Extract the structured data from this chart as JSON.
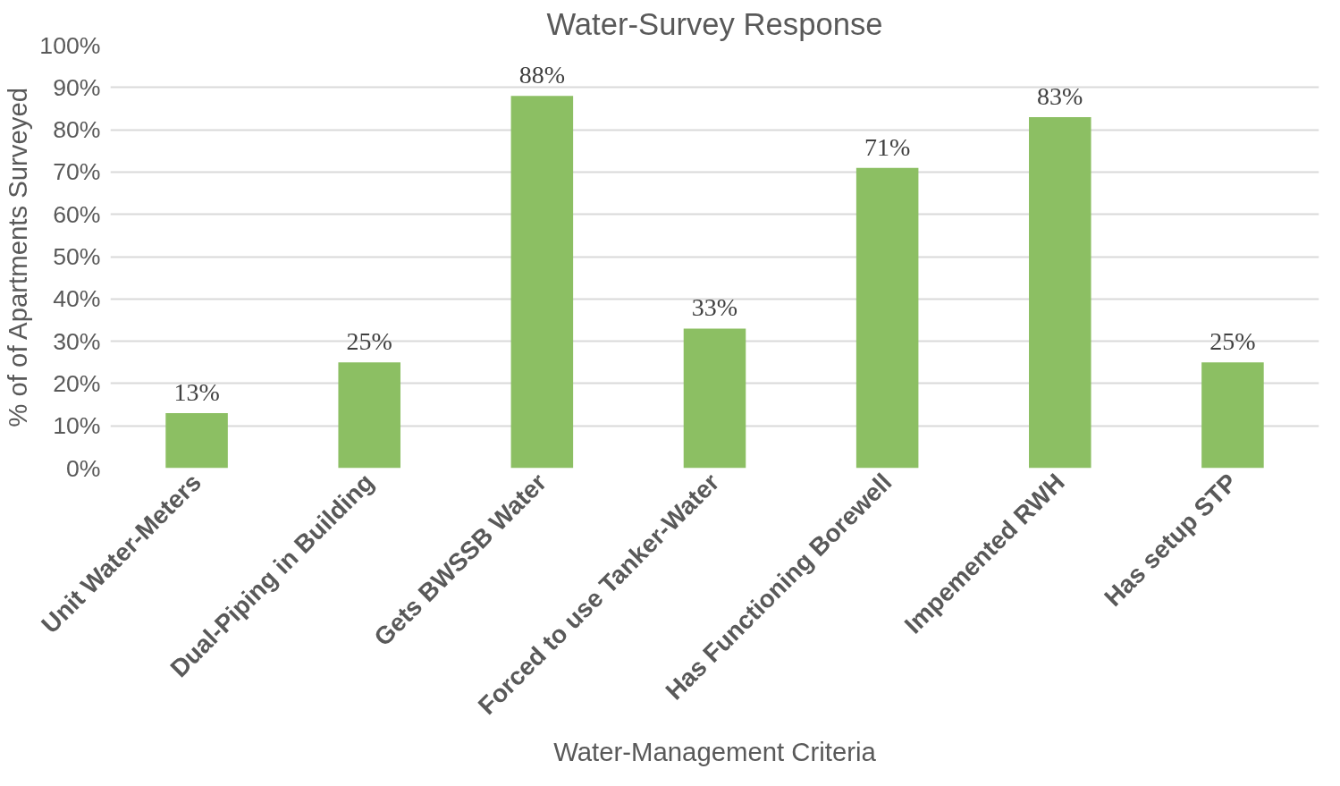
{
  "chart_data": {
    "type": "bar",
    "title": "Water-Survey Response",
    "xlabel": "Water-Management Criteria",
    "ylabel": "% of of Apartments Surveyed",
    "categories": [
      "Unit Water-Meters",
      "Dual-Piping in Building",
      "Gets BWSSB Water",
      "Forced to use Tanker-Water",
      "Has Functioning Borewell",
      "Impemented RWH",
      "Has setup STP"
    ],
    "values": [
      13,
      25,
      88,
      33,
      71,
      83,
      25
    ],
    "value_labels": [
      "13%",
      "25%",
      "88%",
      "33%",
      "71%",
      "83%",
      "25%"
    ],
    "color": "#8cbf63",
    "ylim": [
      0,
      100
    ],
    "yticks": [
      {
        "value": 0,
        "label": "0%"
      },
      {
        "value": 10,
        "label": "10%"
      },
      {
        "value": 20,
        "label": "20%"
      },
      {
        "value": 30,
        "label": "30%"
      },
      {
        "value": 40,
        "label": "40%"
      },
      {
        "value": 50,
        "label": "50%"
      },
      {
        "value": 60,
        "label": "60%"
      },
      {
        "value": 70,
        "label": "70%"
      },
      {
        "value": 80,
        "label": "80%"
      },
      {
        "value": 90,
        "label": "90%"
      },
      {
        "value": 100,
        "label": "100%"
      }
    ],
    "grid": "y"
  }
}
